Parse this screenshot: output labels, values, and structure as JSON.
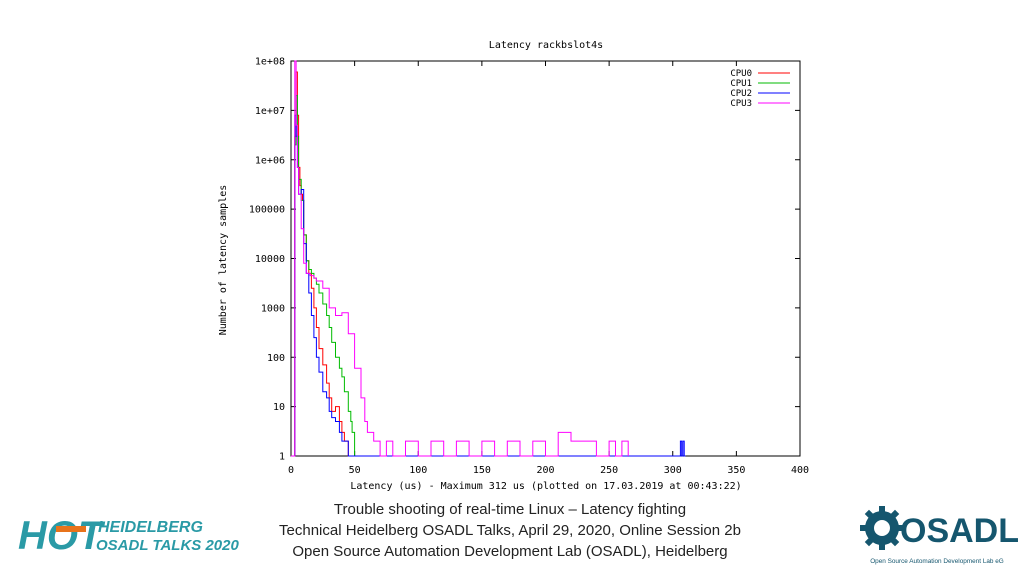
{
  "chart_data": {
    "type": "line",
    "title": "Latency rackbslot4s",
    "xlabel": "Latency (us) - Maximum 312 us (plotted on 17.03.2019 at 00:43:22)",
    "ylabel": "Number of latency samples",
    "xlim": [
      0,
      400
    ],
    "ylim": [
      1,
      100000000
    ],
    "yscale": "log",
    "x_ticks": [
      "0",
      "50",
      "100",
      "150",
      "200",
      "250",
      "300",
      "350",
      "400"
    ],
    "y_ticks": [
      "1",
      "10",
      "100",
      "1000",
      "10000",
      "100000",
      "1e+06",
      "1e+07",
      "1e+08"
    ],
    "legend_position": "top-right",
    "grid": false,
    "series": [
      {
        "name": "CPU0",
        "color": "#ff0000",
        "x": [
          0,
          1,
          2,
          3,
          4,
          5,
          6,
          7,
          8,
          9,
          10,
          12,
          14,
          16,
          18,
          20,
          22,
          25,
          28,
          30,
          32,
          35,
          38,
          40,
          42,
          45,
          48,
          50
        ],
        "y": [
          1,
          1,
          1,
          3000000,
          60000000,
          8000000,
          700000,
          300000,
          200000,
          150000,
          30000,
          9000,
          5000,
          2500,
          1000,
          400,
          150,
          70,
          30,
          15,
          8,
          10,
          5,
          3,
          2,
          1,
          1,
          1
        ]
      },
      {
        "name": "CPU1",
        "color": "#00bb00",
        "x": [
          0,
          2,
          3,
          4,
          5,
          6,
          8,
          10,
          12,
          14,
          16,
          18,
          20,
          22,
          25,
          28,
          30,
          32,
          35,
          38,
          40,
          42,
          45,
          47,
          48,
          50
        ],
        "y": [
          1,
          1,
          2000000,
          20000000,
          3000000,
          400000,
          150000,
          30000,
          9000,
          6000,
          5000,
          4000,
          3000,
          2000,
          1200,
          700,
          400,
          200,
          100,
          60,
          40,
          20,
          8,
          5,
          3,
          1
        ]
      },
      {
        "name": "CPU2",
        "color": "#0000ff",
        "x": [
          0,
          2,
          3,
          4,
          5,
          6,
          8,
          10,
          12,
          14,
          16,
          18,
          20,
          22,
          25,
          28,
          30,
          32,
          35,
          38,
          40,
          45,
          305,
          306,
          307,
          308,
          309,
          310
        ],
        "y": [
          1,
          1,
          8000000,
          3000000,
          700000,
          200000,
          250000,
          20000,
          5000,
          2000,
          700,
          250,
          100,
          50,
          20,
          15,
          8,
          6,
          5,
          3,
          2,
          1,
          1,
          2,
          1,
          2,
          1,
          1
        ]
      },
      {
        "name": "CPU3",
        "color": "#ff00ff",
        "x": [
          0,
          2,
          3,
          4,
          5,
          6,
          8,
          10,
          12,
          15,
          18,
          20,
          25,
          30,
          35,
          40,
          45,
          50,
          55,
          58,
          60,
          65,
          70,
          75,
          80,
          90,
          100,
          110,
          120,
          130,
          140,
          150,
          160,
          170,
          180,
          190,
          200,
          210,
          220,
          230,
          240,
          250,
          255,
          260,
          265
        ],
        "y": [
          1,
          1,
          100000000,
          5000000,
          700000,
          200000,
          40000,
          8000,
          5000,
          4500,
          4000,
          3500,
          2500,
          1000,
          700,
          800,
          300,
          60,
          15,
          5,
          3,
          2,
          1,
          2,
          1,
          2,
          1,
          2,
          1,
          2,
          1,
          2,
          1,
          2,
          1,
          2,
          1,
          3,
          2,
          2,
          1,
          2,
          1,
          2,
          1
        ]
      }
    ]
  },
  "caption": {
    "line1": "Trouble shooting of real-time Linux – Latency fighting",
    "line2": "Technical Heidelberg OSADL Talks, April 29, 2020, Online Session 2b",
    "line3": "Open Source Automation Development Lab (OSADL), Heidelberg"
  },
  "logos": {
    "hot_mark": "HOT",
    "hot_line1": "HEIDELBERG",
    "hot_line2": "OSADL TALKS 2020",
    "osadl_mark": "OSADL",
    "osadl_sub": "Open Source Automation Development Lab eG",
    "hot_color": "#2a9aa6",
    "hot_accent": "#e8731b",
    "osadl_color": "#15566e"
  }
}
